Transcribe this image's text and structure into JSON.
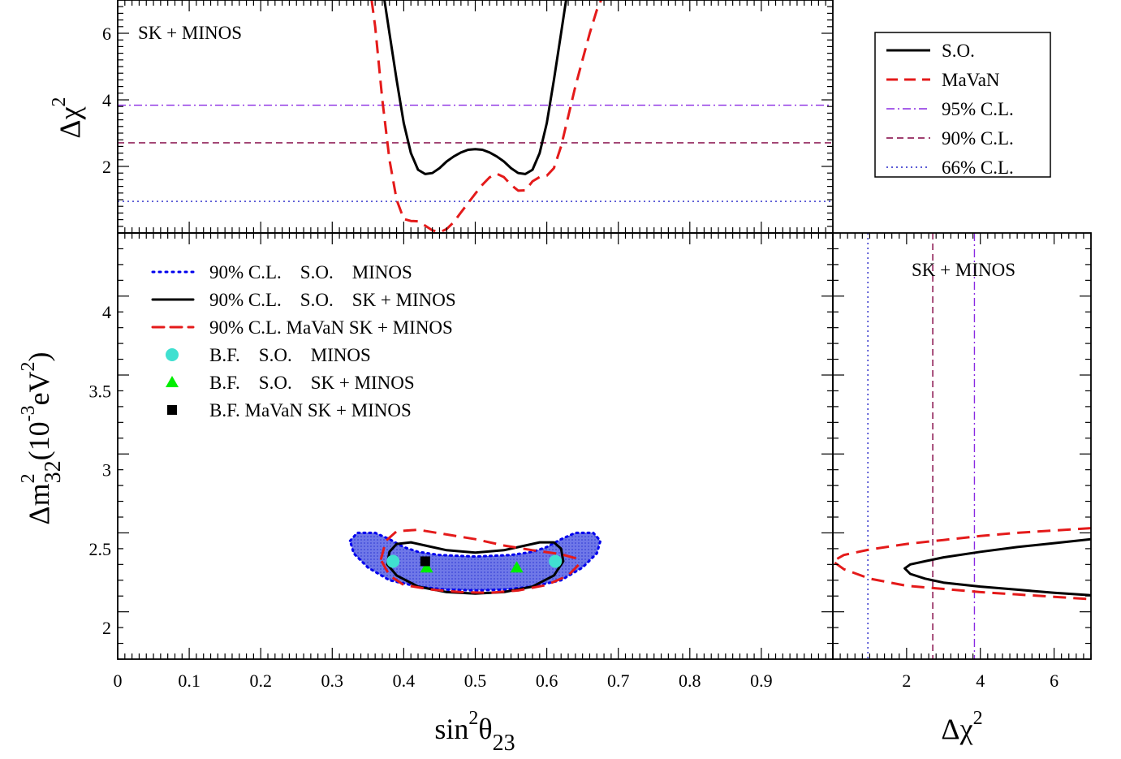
{
  "chart_data": [
    {
      "panel": "top",
      "type": "line",
      "annotation": "SK + MINOS",
      "xlabel": "",
      "ylabel": {
        "base": "Δχ",
        "sup": "2"
      },
      "xlim": [
        0,
        1.0
      ],
      "ylim": [
        0,
        7
      ],
      "yticks": [
        {
          "v": 2,
          "label": "2"
        },
        {
          "v": 4,
          "label": "4"
        },
        {
          "v": 6,
          "label": "6"
        }
      ],
      "hlines": [
        {
          "name": "95% C.L.",
          "y": 3.84,
          "color": "#8a2be2",
          "dash": "10,4,2,4"
        },
        {
          "name": "90% C.L.",
          "y": 2.71,
          "color": "#800040",
          "dash": "8,5"
        },
        {
          "name": "66% C.L.",
          "y": 0.95,
          "color": "#2323c8",
          "dash": "2,4"
        }
      ],
      "series": [
        {
          "name": "S.O.",
          "color": "#000000",
          "dash": "",
          "x": [
            0.373,
            0.38,
            0.39,
            0.4,
            0.41,
            0.42,
            0.43,
            0.44,
            0.45,
            0.46,
            0.47,
            0.48,
            0.49,
            0.5,
            0.51,
            0.52,
            0.53,
            0.54,
            0.55,
            0.56,
            0.57,
            0.58,
            0.59,
            0.6,
            0.61,
            0.62,
            0.627
          ],
          "y": [
            7.0,
            6.0,
            4.6,
            3.3,
            2.4,
            1.9,
            1.77,
            1.8,
            1.95,
            2.15,
            2.3,
            2.42,
            2.5,
            2.52,
            2.5,
            2.42,
            2.3,
            2.15,
            1.95,
            1.8,
            1.77,
            1.9,
            2.4,
            3.3,
            4.6,
            6.0,
            7.0
          ]
        },
        {
          "name": "MaVaN",
          "color": "#e41a1a",
          "dash": "16,9",
          "x": [
            0.355,
            0.36,
            0.37,
            0.38,
            0.39,
            0.4,
            0.41,
            0.42,
            0.43,
            0.44,
            0.45,
            0.46,
            0.47,
            0.48,
            0.49,
            0.5,
            0.51,
            0.52,
            0.53,
            0.54,
            0.55,
            0.56,
            0.57,
            0.58,
            0.59,
            0.6,
            0.61,
            0.62,
            0.63,
            0.64,
            0.65,
            0.66,
            0.67,
            0.676
          ],
          "y": [
            7.0,
            6.2,
            4.0,
            2.2,
            1.0,
            0.42,
            0.36,
            0.35,
            0.22,
            0.08,
            0.02,
            0.12,
            0.33,
            0.62,
            0.9,
            1.18,
            1.45,
            1.67,
            1.78,
            1.68,
            1.45,
            1.27,
            1.28,
            1.55,
            1.68,
            1.72,
            1.95,
            2.6,
            3.5,
            4.4,
            5.2,
            6.0,
            6.7,
            7.0
          ]
        }
      ],
      "legend": {
        "placement": "top-right",
        "entries": [
          "S.O.",
          "MaVaN",
          "95% C.L.",
          "90% C.L.",
          "66% C.L."
        ]
      }
    },
    {
      "panel": "main",
      "type": "scatter",
      "xlabel": {
        "base": "sin",
        "sup": "2",
        "mid": "θ",
        "sub": "23"
      },
      "ylabel": {
        "a": "Δm",
        "sup1": "2",
        "sub": "32",
        "b": "(10",
        "sup2": "-3",
        "c": "eV",
        "sup3": "2",
        "d": ")"
      },
      "xlim": [
        0,
        1.0
      ],
      "ylim": [
        1.8,
        4.5
      ],
      "xticks": [
        {
          "v": 0,
          "label": "0"
        },
        {
          "v": 0.1,
          "label": "0.1"
        },
        {
          "v": 0.2,
          "label": "0.2"
        },
        {
          "v": 0.3,
          "label": "0.3"
        },
        {
          "v": 0.4,
          "label": "0.4"
        },
        {
          "v": 0.5,
          "label": "0.5"
        },
        {
          "v": 0.6,
          "label": "0.6"
        },
        {
          "v": 0.7,
          "label": "0.7"
        },
        {
          "v": 0.8,
          "label": "0.8"
        },
        {
          "v": 0.9,
          "label": "0.9"
        }
      ],
      "yticks": [
        {
          "v": 2,
          "label": "2"
        },
        {
          "v": 2.5,
          "label": "2.5"
        },
        {
          "v": 3,
          "label": "3"
        },
        {
          "v": 3.5,
          "label": "3.5"
        },
        {
          "v": 4,
          "label": "4"
        }
      ],
      "contours": [
        {
          "name": "90% C.L.    S.O.    MINOS",
          "style": "dotted-filled",
          "color": "#0000ee",
          "fill": "#5f6be6",
          "points": [
            [
              0.325,
              2.55
            ],
            [
              0.335,
              2.6
            ],
            [
              0.36,
              2.6
            ],
            [
              0.38,
              2.56
            ],
            [
              0.4,
              2.51
            ],
            [
              0.42,
              2.48
            ],
            [
              0.45,
              2.46
            ],
            [
              0.5,
              2.45
            ],
            [
              0.55,
              2.46
            ],
            [
              0.58,
              2.48
            ],
            [
              0.6,
              2.51
            ],
            [
              0.62,
              2.56
            ],
            [
              0.64,
              2.6
            ],
            [
              0.665,
              2.6
            ],
            [
              0.675,
              2.55
            ],
            [
              0.67,
              2.47
            ],
            [
              0.65,
              2.38
            ],
            [
              0.62,
              2.3
            ],
            [
              0.58,
              2.26
            ],
            [
              0.54,
              2.24
            ],
            [
              0.5,
              2.235
            ],
            [
              0.46,
              2.24
            ],
            [
              0.42,
              2.26
            ],
            [
              0.38,
              2.3
            ],
            [
              0.35,
              2.38
            ],
            [
              0.33,
              2.47
            ]
          ]
        },
        {
          "name": "90% C.L.    S.O.    SK + MINOS",
          "style": "solid",
          "color": "#000000",
          "points": [
            [
              0.377,
              2.4
            ],
            [
              0.38,
              2.48
            ],
            [
              0.39,
              2.53
            ],
            [
              0.41,
              2.54
            ],
            [
              0.43,
              2.52
            ],
            [
              0.46,
              2.49
            ],
            [
              0.5,
              2.475
            ],
            [
              0.54,
              2.49
            ],
            [
              0.57,
              2.52
            ],
            [
              0.59,
              2.54
            ],
            [
              0.61,
              2.54
            ],
            [
              0.62,
              2.5
            ],
            [
              0.623,
              2.42
            ],
            [
              0.61,
              2.33
            ],
            [
              0.58,
              2.26
            ],
            [
              0.54,
              2.225
            ],
            [
              0.5,
              2.215
            ],
            [
              0.46,
              2.225
            ],
            [
              0.42,
              2.26
            ],
            [
              0.39,
              2.33
            ]
          ]
        },
        {
          "name": "90% C.L. MaVaN SK + MINOS",
          "style": "dashed",
          "color": "#e41a1a",
          "points": [
            [
              0.368,
              2.43
            ],
            [
              0.375,
              2.55
            ],
            [
              0.39,
              2.61
            ],
            [
              0.42,
              2.62
            ],
            [
              0.46,
              2.59
            ],
            [
              0.5,
              2.56
            ],
            [
              0.54,
              2.52
            ],
            [
              0.58,
              2.49
            ],
            [
              0.62,
              2.465
            ],
            [
              0.64,
              2.44
            ],
            [
              0.645,
              2.4
            ],
            [
              0.63,
              2.33
            ],
            [
              0.6,
              2.27
            ],
            [
              0.56,
              2.235
            ],
            [
              0.52,
              2.22
            ],
            [
              0.48,
              2.225
            ],
            [
              0.44,
              2.24
            ],
            [
              0.4,
              2.27
            ],
            [
              0.38,
              2.33
            ]
          ]
        }
      ],
      "points": [
        {
          "name": "B.F.    S.O.    MINOS",
          "marker": "circle",
          "color": "#40e0d0",
          "xy": [
            [
              0.385,
              2.42
            ],
            [
              0.612,
              2.42
            ]
          ]
        },
        {
          "name": "B.F.    S.O.    SK + MINOS",
          "marker": "triangle",
          "color": "#00ee00",
          "xy": [
            [
              0.432,
              2.38
            ],
            [
              0.558,
              2.38
            ]
          ]
        },
        {
          "name": "B.F. MaVaN SK + MINOS",
          "marker": "square",
          "color": "#000000",
          "xy": [
            [
              0.43,
              2.42
            ]
          ]
        }
      ],
      "legend": {
        "placement": "top-left"
      }
    },
    {
      "panel": "right",
      "type": "line",
      "annotation": "SK + MINOS",
      "xlabel": {
        "base": "Δχ",
        "sup": "2"
      },
      "xlim": [
        0,
        7
      ],
      "ylim": [
        1.8,
        4.5
      ],
      "xticks": [
        {
          "v": 2,
          "label": "2"
        },
        {
          "v": 4,
          "label": "4"
        },
        {
          "v": 6,
          "label": "6"
        }
      ],
      "vlines": [
        {
          "name": "66% C.L.",
          "x": 0.95,
          "color": "#2323c8",
          "dash": "2,4"
        },
        {
          "name": "90% C.L.",
          "x": 2.71,
          "color": "#800040",
          "dash": "8,5"
        },
        {
          "name": "95% C.L.",
          "x": 3.84,
          "color": "#8a2be2",
          "dash": "10,4,2,4"
        }
      ],
      "series": [
        {
          "name": "S.O.",
          "color": "#000000",
          "dash": "",
          "x": [
            7.0,
            6.0,
            5.0,
            4.0,
            3.0,
            2.5,
            2.1,
            1.95,
            2.1,
            2.5,
            3.0,
            4.0,
            5.0,
            6.0,
            7.0
          ],
          "y": [
            2.56,
            2.535,
            2.51,
            2.48,
            2.445,
            2.42,
            2.4,
            2.375,
            2.34,
            2.31,
            2.285,
            2.26,
            2.24,
            2.22,
            2.205
          ]
        },
        {
          "name": "MaVaN",
          "color": "#e41a1a",
          "dash": "16,9",
          "x": [
            7.0,
            6.0,
            5.0,
            4.0,
            3.0,
            2.0,
            1.0,
            0.3,
            0.0,
            0.3,
            1.0,
            2.0,
            3.0,
            4.0,
            5.0,
            6.0,
            7.0
          ],
          "y": [
            2.63,
            2.615,
            2.6,
            2.58,
            2.555,
            2.53,
            2.495,
            2.46,
            2.42,
            2.37,
            2.31,
            2.265,
            2.245,
            2.225,
            2.21,
            2.195,
            2.18
          ]
        }
      ]
    }
  ],
  "legend_top": [
    {
      "label": "S.O.",
      "color": "#000000",
      "dash": "",
      "width": 3
    },
    {
      "label": "MaVaN",
      "color": "#e41a1a",
      "dash": "14,8",
      "width": 3
    },
    {
      "label": "95% C.L.",
      "color": "#8a2be2",
      "dash": "10,4,2,4",
      "width": 1.5
    },
    {
      "label": "90% C.L.",
      "color": "#800040",
      "dash": "8,5",
      "width": 1.5
    },
    {
      "label": "66% C.L.",
      "color": "#2323c8",
      "dash": "2,4",
      "width": 1.5
    }
  ],
  "legend_main": [
    {
      "label": "90% C.L.    S.O.    MINOS",
      "kind": "line",
      "color": "#0000ee",
      "dash": "2,6",
      "width": 3
    },
    {
      "label": "90% C.L.    S.O.    SK + MINOS",
      "kind": "line",
      "color": "#000000",
      "dash": "",
      "width": 3
    },
    {
      "label": "90% C.L. MaVaN SK + MINOS",
      "kind": "line",
      "color": "#e41a1a",
      "dash": "14,8",
      "width": 3
    },
    {
      "label": "B.F.    S.O.    MINOS",
      "kind": "circle",
      "color": "#40e0d0"
    },
    {
      "label": "B.F.    S.O.    SK + MINOS",
      "kind": "triangle",
      "color": "#00ee00"
    },
    {
      "label": "B.F. MaVaN SK + MINOS",
      "kind": "square",
      "color": "#000000"
    }
  ]
}
